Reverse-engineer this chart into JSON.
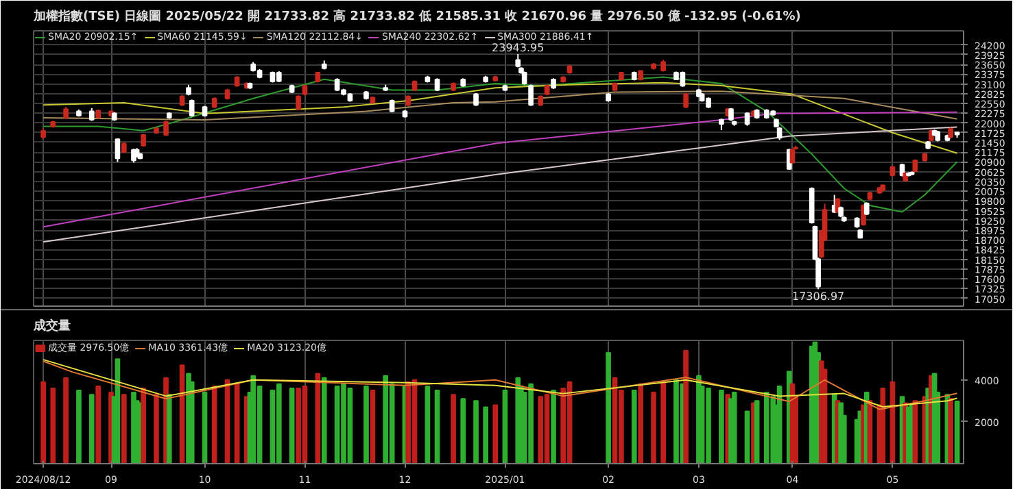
{
  "chart_data": [
    {
      "type": "candlestick",
      "title": "加權指數(TSE)  日線圖  2025/05/22  開 21733.82  高 21733.82  低 21585.31  收 21670.96  量 2976.50 億  -132.95 (-0.61%)",
      "x": [
        "2024-08-12",
        "2024-08-15",
        "2024-08-19",
        "2024-08-23",
        "2024-08-27",
        "2024-08-29",
        "2024-09-02",
        "2024-09-03",
        "2024-09-04",
        "2024-09-06",
        "2024-09-09",
        "2024-09-10",
        "2024-09-11",
        "2024-09-12",
        "2024-09-16",
        "2024-09-19",
        "2024-09-20",
        "2024-09-24",
        "2024-09-26",
        "2024-09-27",
        "2024-10-01",
        "2024-10-04",
        "2024-10-08",
        "2024-10-11",
        "2024-10-14",
        "2024-10-15",
        "2024-10-16",
        "2024-10-18",
        "2024-10-22",
        "2024-10-24",
        "2024-10-28",
        "2024-10-30",
        "2024-11-01",
        "2024-11-05",
        "2024-11-07",
        "2024-11-11",
        "2024-11-13",
        "2024-11-15",
        "2024-11-20",
        "2024-11-22",
        "2024-11-26",
        "2024-11-28",
        "2024-12-02",
        "2024-12-03",
        "2024-12-05",
        "2024-12-09",
        "2024-12-12",
        "2024-12-17",
        "2024-12-20",
        "2024-12-24",
        "2024-12-27",
        "2024-12-30",
        "2025-01-02",
        "2025-01-06",
        "2025-01-07",
        "2025-01-08",
        "2025-01-10",
        "2025-01-13",
        "2025-01-15",
        "2025-01-17",
        "2025-01-20",
        "2025-01-22",
        "2025-02-03",
        "2025-02-05",
        "2025-02-07",
        "2025-02-11",
        "2025-02-13",
        "2025-02-17",
        "2025-02-20",
        "2025-02-24",
        "2025-02-26",
        "2025-02-27",
        "2025-03-03",
        "2025-03-04",
        "2025-03-06",
        "2025-03-10",
        "2025-03-12",
        "2025-03-13",
        "2025-03-14",
        "2025-03-18",
        "2025-03-20",
        "2025-03-21",
        "2025-03-24",
        "2025-03-26",
        "2025-03-27",
        "2025-03-28",
        "2025-03-31",
        "2025-04-01",
        "2025-04-02",
        "2025-04-07",
        "2025-04-08",
        "2025-04-09",
        "2025-04-10",
        "2025-04-11",
        "2025-04-14",
        "2025-04-15",
        "2025-04-16",
        "2025-04-17",
        "2025-04-21",
        "2025-04-22",
        "2025-04-23",
        "2025-04-24",
        "2025-04-25",
        "2025-04-28",
        "2025-04-29",
        "2025-05-02",
        "2025-05-05",
        "2025-05-06",
        "2025-05-07",
        "2025-05-08",
        "2025-05-09",
        "2025-05-12",
        "2025-05-13",
        "2025-05-14",
        "2025-05-15",
        "2025-05-16",
        "2025-05-19",
        "2025-05-20",
        "2025-05-22"
      ],
      "ohlc": [
        [
          21600,
          21850,
          21550,
          21780
        ],
        [
          21900,
          22060,
          21870,
          22030
        ],
        [
          22150,
          22450,
          22120,
          22390
        ],
        [
          22330,
          22380,
          22180,
          22210
        ],
        [
          22330,
          22420,
          22060,
          22090
        ],
        [
          22150,
          22380,
          22120,
          22350
        ],
        [
          22210,
          22360,
          22180,
          22330
        ],
        [
          22270,
          22300,
          22060,
          22090
        ],
        [
          21540,
          21560,
          20900,
          21000
        ],
        [
          21180,
          21450,
          21150,
          21420
        ],
        [
          21240,
          21270,
          20880,
          20940
        ],
        [
          21240,
          21290,
          21030,
          21060
        ],
        [
          21120,
          21150,
          20980,
          21000
        ],
        [
          21360,
          21690,
          21340,
          21660
        ],
        [
          21720,
          21880,
          21700,
          21850
        ],
        [
          21660,
          22060,
          21640,
          22030
        ],
        [
          22270,
          22300,
          22120,
          22150
        ],
        [
          22510,
          22780,
          22480,
          22750
        ],
        [
          22990,
          23080,
          22780,
          22810
        ],
        [
          22630,
          22660,
          22180,
          22210
        ],
        [
          22450,
          22480,
          22180,
          22210
        ],
        [
          22450,
          22720,
          22420,
          22690
        ],
        [
          22690,
          22960,
          22660,
          22930
        ],
        [
          23050,
          23320,
          23020,
          23290
        ],
        [
          22990,
          23150,
          22960,
          23110
        ],
        [
          23110,
          23140,
          22960,
          22990
        ],
        [
          23660,
          23720,
          23450,
          23480
        ],
        [
          23480,
          23520,
          23260,
          23290
        ],
        [
          23420,
          23450,
          23140,
          23170
        ],
        [
          23420,
          23460,
          23150,
          23180
        ],
        [
          23050,
          23080,
          22840,
          22870
        ],
        [
          22390,
          22780,
          22360,
          22750
        ],
        [
          22810,
          23080,
          22780,
          23050
        ],
        [
          23170,
          23440,
          23140,
          23420
        ],
        [
          23660,
          23760,
          23510,
          23540
        ],
        [
          23230,
          23260,
          22900,
          22930
        ],
        [
          22930,
          22960,
          22780,
          22810
        ],
        [
          22810,
          22840,
          22600,
          22630
        ],
        [
          22870,
          22900,
          22660,
          22690
        ],
        [
          22570,
          22740,
          22540,
          22720
        ],
        [
          22990,
          23080,
          22900,
          22930
        ],
        [
          22630,
          22660,
          22300,
          22330
        ],
        [
          22330,
          22360,
          22150,
          22180
        ],
        [
          22510,
          22780,
          22480,
          22750
        ],
        [
          22930,
          23200,
          22900,
          23170
        ],
        [
          23290,
          23330,
          23140,
          23170
        ],
        [
          23230,
          23260,
          22900,
          22930
        ],
        [
          22930,
          23140,
          22900,
          23110
        ],
        [
          23230,
          23260,
          23020,
          23050
        ],
        [
          22810,
          22840,
          22480,
          22510
        ],
        [
          23290,
          23330,
          23140,
          23170
        ],
        [
          23200,
          23330,
          23170,
          23300
        ],
        [
          23050,
          23080,
          22900,
          22930
        ],
        [
          23780,
          23943.95,
          23570,
          23600
        ],
        [
          23540,
          23570,
          23390,
          23420
        ],
        [
          23420,
          23450,
          23080,
          23110
        ],
        [
          23050,
          23080,
          22480,
          22510
        ],
        [
          22510,
          22780,
          22480,
          22750
        ],
        [
          22810,
          23080,
          22780,
          23050
        ],
        [
          23230,
          23260,
          22960,
          22990
        ],
        [
          23170,
          23320,
          23140,
          23290
        ],
        [
          23420,
          23650,
          23390,
          23600
        ],
        [
          22810,
          22840,
          22600,
          22630
        ],
        [
          22930,
          23140,
          22900,
          23110
        ],
        [
          23230,
          23440,
          23200,
          23420
        ],
        [
          23420,
          23450,
          23200,
          23230
        ],
        [
          23230,
          23480,
          23200,
          23470
        ],
        [
          23540,
          23690,
          23510,
          23660
        ],
        [
          23480,
          23780,
          23450,
          23720
        ],
        [
          23420,
          23450,
          23220,
          23230
        ],
        [
          23420,
          23450,
          23020,
          23050
        ],
        [
          22450,
          22840,
          22420,
          22810
        ],
        [
          22930,
          22960,
          22730,
          22750
        ],
        [
          22810,
          22840,
          22600,
          22630
        ],
        [
          22690,
          22720,
          22420,
          22450
        ],
        [
          22090,
          22120,
          21800,
          21970
        ],
        [
          22210,
          22420,
          22180,
          22390
        ],
        [
          22390,
          22420,
          22060,
          22090
        ],
        [
          22030,
          22060,
          21920,
          21970
        ],
        [
          22270,
          22300,
          21920,
          21970
        ],
        [
          22210,
          22360,
          22180,
          22330
        ],
        [
          22360,
          22390,
          22120,
          22150
        ],
        [
          22360,
          22390,
          22120,
          22150
        ],
        [
          22330,
          22360,
          22210,
          22230
        ],
        [
          22090,
          22120,
          21880,
          21900
        ],
        [
          21850,
          21880,
          21520,
          21580
        ],
        [
          21240,
          21270,
          20680,
          20700
        ],
        [
          20880,
          21270,
          20850,
          21240
        ],
        [
          21280,
          21360,
          21250,
          21300
        ],
        [
          20150,
          20180,
          19160,
          19190
        ],
        [
          19070,
          19100,
          18130,
          18160
        ],
        [
          18160,
          18200,
          17306.97,
          17380
        ],
        [
          18220,
          18980,
          18190,
          18950
        ],
        [
          18700,
          19720,
          18670,
          19550
        ],
        [
          19670,
          19970,
          19460,
          19490
        ],
        [
          19490,
          19880,
          19460,
          19850
        ],
        [
          19610,
          19640,
          19340,
          19370
        ],
        [
          19330,
          19360,
          19210,
          19240
        ],
        [
          19310,
          19340,
          19040,
          19070
        ],
        [
          18970,
          19000,
          18740,
          18760
        ],
        [
          19130,
          19700,
          19100,
          19670
        ],
        [
          19730,
          19760,
          19400,
          19430
        ],
        [
          19850,
          20060,
          19820,
          20030
        ],
        [
          20030,
          20190,
          20000,
          20170
        ],
        [
          20100,
          20260,
          20070,
          20240
        ],
        [
          20520,
          20790,
          20490,
          20760
        ],
        [
          20820,
          20850,
          20490,
          20520
        ],
        [
          20370,
          20590,
          20340,
          20580
        ],
        [
          20580,
          20610,
          20490,
          20520
        ],
        [
          20600,
          20630,
          20530,
          20550
        ],
        [
          20640,
          20970,
          20610,
          20940
        ],
        [
          20940,
          21150,
          20910,
          21120
        ],
        [
          21460,
          21490,
          21260,
          21290
        ],
        [
          21510,
          21810,
          21480,
          21780
        ],
        [
          21780,
          21810,
          21630,
          21660
        ],
        [
          21750,
          21780,
          21480,
          21510
        ],
        [
          21640,
          21670,
          21480,
          21510
        ],
        [
          21600,
          21870,
          21570,
          21840
        ],
        [
          21733.82,
          21733.82,
          21585.31,
          21670.96
        ]
      ],
      "colors": [
        "#c8281e",
        "#c8281e",
        "#c8281e",
        "#ffffff",
        "#ffffff",
        "#c8281e",
        "#c8281e",
        "#ffffff",
        "#ffffff",
        "#c8281e",
        "#ffffff",
        "#ffffff",
        "#ffffff",
        "#c8281e",
        "#c8281e",
        "#c8281e",
        "#ffffff",
        "#c8281e",
        "#ffffff",
        "#ffffff",
        "#ffffff",
        "#c8281e",
        "#c8281e",
        "#c8281e",
        "#c8281e",
        "#ffffff",
        "#ffffff",
        "#ffffff",
        "#ffffff",
        "#ffffff",
        "#ffffff",
        "#c8281e",
        "#c8281e",
        "#c8281e",
        "#ffffff",
        "#ffffff",
        "#ffffff",
        "#ffffff",
        "#ffffff",
        "#c8281e",
        "#ffffff",
        "#ffffff",
        "#ffffff",
        "#c8281e",
        "#c8281e",
        "#ffffff",
        "#ffffff",
        "#c8281e",
        "#ffffff",
        "#ffffff",
        "#ffffff",
        "#c8281e",
        "#ffffff",
        "#ffffff",
        "#ffffff",
        "#ffffff",
        "#ffffff",
        "#c8281e",
        "#c8281e",
        "#ffffff",
        "#c8281e",
        "#c8281e",
        "#ffffff",
        "#c8281e",
        "#c8281e",
        "#ffffff",
        "#c8281e",
        "#c8281e",
        "#c8281e",
        "#ffffff",
        "#ffffff",
        "#c8281e",
        "#ffffff",
        "#ffffff",
        "#ffffff",
        "#ffffff",
        "#c8281e",
        "#ffffff",
        "#ffffff",
        "#ffffff",
        "#c8281e",
        "#ffffff",
        "#ffffff",
        "#ffffff",
        "#ffffff",
        "#ffffff",
        "#ffffff",
        "#c8281e",
        "#c8281e",
        "#ffffff",
        "#ffffff",
        "#ffffff",
        "#c8281e",
        "#c8281e",
        "#ffffff",
        "#c8281e",
        "#ffffff",
        "#ffffff",
        "#ffffff",
        "#ffffff",
        "#c8281e",
        "#ffffff",
        "#c8281e",
        "#c8281e",
        "#c8281e",
        "#c8281e",
        "#ffffff",
        "#c8281e",
        "#ffffff",
        "#ffffff",
        "#c8281e",
        "#c8281e",
        "#ffffff",
        "#c8281e",
        "#ffffff",
        "#ffffff",
        "#ffffff",
        "#c8281e",
        "#ffffff"
      ],
      "series": [
        {
          "type": "line",
          "name": "SMA20 20902.15↑",
          "color": "#2e9b2e",
          "x": [
            "2024-08-12",
            "2024-08-29",
            "2024-09-12",
            "2024-09-24",
            "2024-10-16",
            "2024-11-07",
            "2024-11-28",
            "2024-12-12",
            "2024-12-30",
            "2025-01-13",
            "2025-02-20",
            "2025-03-10",
            "2025-03-24",
            "2025-04-07",
            "2025-04-17",
            "2025-04-25",
            "2025-05-05",
            "2025-05-12",
            "2025-05-22"
          ],
          "values": [
            21905,
            21905,
            21784,
            22086,
            22690,
            23234,
            22930,
            22930,
            23113,
            23050,
            23294,
            23113,
            22328,
            21120,
            20154,
            19670,
            19489,
            19972,
            20902.15
          ]
        },
        {
          "type": "line",
          "name": "SMA60 21145.59↓",
          "color": "#c8c832",
          "x": [
            "2024-08-12",
            "2024-09-06",
            "2024-10-01",
            "2024-11-13",
            "2024-12-03",
            "2024-12-30",
            "2025-01-22",
            "2025-02-20",
            "2025-03-10",
            "2025-04-01",
            "2025-05-02",
            "2025-05-22"
          ],
          "values": [
            22509,
            22570,
            22268,
            22449,
            22630,
            22992,
            23077,
            23137,
            23053,
            22811,
            21724,
            21145.59
          ]
        },
        {
          "type": "line",
          "name": "SMA120 22112.84↓",
          "color": "#a88c5c",
          "x": [
            "2024-08-12",
            "2024-10-01",
            "2024-11-20",
            "2024-12-17",
            "2024-12-30",
            "2025-02-05",
            "2025-03-10",
            "2025-04-17",
            "2025-05-22"
          ],
          "values": [
            22147,
            22086,
            22328,
            22570,
            22594,
            22872,
            22896,
            22690,
            22112.84
          ]
        },
        {
          "type": "line",
          "name": "SMA240 22302.62↑",
          "color": "#c040c0",
          "x": [
            "2024-08-12",
            "2024-12-30",
            "2025-03-10",
            "2025-03-26",
            "2025-05-22"
          ],
          "values": [
            19066,
            21422,
            22086,
            22268,
            22302.62
          ]
        },
        {
          "type": "line",
          "name": "SMA300 21886.41↑",
          "color": "#d8c8c8",
          "x": [
            "2024-08-12",
            "2024-12-30",
            "2025-03-31",
            "2025-05-22"
          ],
          "values": [
            18644,
            20540,
            21627,
            21886.41
          ]
        }
      ],
      "xlim": [
        "2024-08-09",
        "2025-05-24"
      ],
      "xticks": [
        {
          "value": "2024-08-12",
          "label": null
        },
        {
          "value": "2024-09-02",
          "label": null
        },
        {
          "value": "2024-10-01",
          "label": null
        },
        {
          "value": "2024-11-01",
          "label": null
        },
        {
          "value": "2024-12-02",
          "label": null
        },
        {
          "value": "2025-01-02",
          "label": null
        },
        {
          "value": "2025-02-03",
          "label": null
        },
        {
          "value": "2025-03-03",
          "label": null
        },
        {
          "value": "2025-04-01",
          "label": null
        },
        {
          "value": "2025-05-02",
          "label": null
        }
      ],
      "ylim": [
        16830,
        24600
      ],
      "yticks": [
        17050,
        17325,
        17600,
        17875,
        18150,
        18425,
        18700,
        18975,
        19250,
        19525,
        19800,
        20075,
        20350,
        20625,
        20900,
        21175,
        21450,
        21725,
        22000,
        22275,
        22550,
        22825,
        23100,
        23375,
        23650,
        23925,
        24200
      ],
      "tick_labels": "y",
      "grid": true,
      "legend": "top left",
      "annotations": [
        {
          "text": "23943.95",
          "x": "2025-01-06",
          "y": 23943.95
        },
        {
          "text": "17306.97",
          "x": "2025-04-09",
          "y": 17306.97
        }
      ]
    },
    {
      "type": "bar",
      "title": "成交量",
      "x": [
        "2024-08-12",
        "2024-08-15",
        "2024-08-19",
        "2024-08-23",
        "2024-08-27",
        "2024-08-29",
        "2024-09-02",
        "2024-09-03",
        "2024-09-04",
        "2024-09-06",
        "2024-09-09",
        "2024-09-10",
        "2024-09-11",
        "2024-09-12",
        "2024-09-16",
        "2024-09-19",
        "2024-09-20",
        "2024-09-24",
        "2024-09-26",
        "2024-09-27",
        "2024-10-01",
        "2024-10-04",
        "2024-10-08",
        "2024-10-11",
        "2024-10-14",
        "2024-10-15",
        "2024-10-16",
        "2024-10-18",
        "2024-10-22",
        "2024-10-24",
        "2024-10-28",
        "2024-10-30",
        "2024-11-01",
        "2024-11-05",
        "2024-11-07",
        "2024-11-11",
        "2024-11-13",
        "2024-11-15",
        "2024-11-20",
        "2024-11-22",
        "2024-11-26",
        "2024-11-28",
        "2024-12-02",
        "2024-12-03",
        "2024-12-05",
        "2024-12-09",
        "2024-12-12",
        "2024-12-17",
        "2024-12-20",
        "2024-12-24",
        "2024-12-27",
        "2024-12-30",
        "2025-01-02",
        "2025-01-06",
        "2025-01-07",
        "2025-01-08",
        "2025-01-10",
        "2025-01-13",
        "2025-01-15",
        "2025-01-17",
        "2025-01-20",
        "2025-01-22",
        "2025-02-03",
        "2025-02-05",
        "2025-02-07",
        "2025-02-11",
        "2025-02-13",
        "2025-02-17",
        "2025-02-20",
        "2025-02-24",
        "2025-02-26",
        "2025-02-27",
        "2025-03-03",
        "2025-03-04",
        "2025-03-06",
        "2025-03-10",
        "2025-03-12",
        "2025-03-13",
        "2025-03-14",
        "2025-03-18",
        "2025-03-20",
        "2025-03-21",
        "2025-03-24",
        "2025-03-26",
        "2025-03-27",
        "2025-03-28",
        "2025-03-31",
        "2025-04-01",
        "2025-04-02",
        "2025-04-07",
        "2025-04-08",
        "2025-04-09",
        "2025-04-10",
        "2025-04-11",
        "2025-04-14",
        "2025-04-15",
        "2025-04-16",
        "2025-04-17",
        "2025-04-21",
        "2025-04-22",
        "2025-04-23",
        "2025-04-24",
        "2025-04-25",
        "2025-04-28",
        "2025-04-29",
        "2025-05-02",
        "2025-05-05",
        "2025-05-06",
        "2025-05-07",
        "2025-05-08",
        "2025-05-09",
        "2025-05-12",
        "2025-05-13",
        "2025-05-14",
        "2025-05-15",
        "2025-05-16",
        "2025-05-19",
        "2025-05-20",
        "2025-05-22"
      ],
      "series": [
        {
          "type": "bar",
          "name": "成交量 2976.50億",
          "color": "#c0201c",
          "values": [
            3900,
            3600,
            4100,
            3500,
            3300,
            3700,
            3400,
            3200,
            5000,
            3300,
            3400,
            3000,
            2900,
            3600,
            3300,
            4100,
            3300,
            4700,
            4300,
            3900,
            3400,
            3700,
            4000,
            3800,
            3200,
            3400,
            4200,
            3700,
            3500,
            3800,
            3600,
            3600,
            3700,
            4300,
            4100,
            3700,
            3800,
            3600,
            3700,
            3500,
            4200,
            3800,
            3700,
            3900,
            4000,
            3700,
            3500,
            3300,
            3100,
            3000,
            2700,
            2800,
            3500,
            4100,
            3700,
            3400,
            3800,
            3200,
            3300,
            3500,
            3600,
            3900,
            5300,
            4100,
            3500,
            3500,
            3800,
            3400,
            3900,
            4000,
            3800,
            5400,
            4200,
            3700,
            3600,
            3500,
            3300,
            3100,
            3400,
            2500,
            2900,
            3000,
            3400,
            3200,
            2800,
            3700,
            4400,
            3800,
            3200,
            5600,
            5800,
            5300,
            4900,
            4500,
            3300,
            3000,
            2900,
            2300,
            2100,
            2500,
            2800,
            3400,
            3000,
            2800,
            3600,
            3900,
            3200,
            2900,
            2700,
            2800,
            3000,
            3200,
            3600,
            4200,
            4300,
            3400,
            3300,
            3100,
            2976.5
          ],
          "colors": [
            "#c0201c",
            "#c0201c",
            "#c0201c",
            "#30b030",
            "#30b030",
            "#c0201c",
            "#c0201c",
            "#30b030",
            "#30b030",
            "#c0201c",
            "#30b030",
            "#30b030",
            "#30b030",
            "#c0201c",
            "#c0201c",
            "#c0201c",
            "#30b030",
            "#c0201c",
            "#30b030",
            "#30b030",
            "#30b030",
            "#c0201c",
            "#c0201c",
            "#c0201c",
            "#c0201c",
            "#30b030",
            "#30b030",
            "#30b030",
            "#30b030",
            "#30b030",
            "#30b030",
            "#c0201c",
            "#c0201c",
            "#c0201c",
            "#30b030",
            "#30b030",
            "#30b030",
            "#30b030",
            "#30b030",
            "#c0201c",
            "#30b030",
            "#30b030",
            "#30b030",
            "#c0201c",
            "#c0201c",
            "#30b030",
            "#30b030",
            "#c0201c",
            "#30b030",
            "#30b030",
            "#30b030",
            "#c0201c",
            "#30b030",
            "#30b030",
            "#30b030",
            "#30b030",
            "#30b030",
            "#c0201c",
            "#c0201c",
            "#30b030",
            "#c0201c",
            "#c0201c",
            "#30b030",
            "#c0201c",
            "#c0201c",
            "#30b030",
            "#c0201c",
            "#c0201c",
            "#c0201c",
            "#30b030",
            "#30b030",
            "#c0201c",
            "#30b030",
            "#30b030",
            "#30b030",
            "#30b030",
            "#c0201c",
            "#30b030",
            "#30b030",
            "#30b030",
            "#c0201c",
            "#30b030",
            "#30b030",
            "#30b030",
            "#30b030",
            "#30b030",
            "#30b030",
            "#c0201c",
            "#c0201c",
            "#30b030",
            "#30b030",
            "#30b030",
            "#c0201c",
            "#c0201c",
            "#30b030",
            "#c0201c",
            "#30b030",
            "#30b030",
            "#30b030",
            "#30b030",
            "#c0201c",
            "#30b030",
            "#c0201c",
            "#c0201c",
            "#c0201c",
            "#c0201c",
            "#30b030",
            "#c0201c",
            "#30b030",
            "#30b030",
            "#c0201c",
            "#c0201c",
            "#30b030",
            "#c0201c",
            "#30b030",
            "#30b030",
            "#30b030",
            "#c0201c",
            "#30b030"
          ]
        },
        {
          "type": "line",
          "name": "MA10 3361.43億",
          "color": "#e07830",
          "x": [
            "2024-08-12",
            "2024-08-21",
            "2024-09-19",
            "2024-10-16",
            "2024-12-02",
            "2024-12-30",
            "2025-01-20",
            "2025-02-27",
            "2025-03-31",
            "2025-04-11",
            "2025-04-28",
            "2025-05-12",
            "2025-05-22"
          ],
          "values": [
            4890,
            4380,
            3100,
            4000,
            3740,
            4000,
            3230,
            4120,
            2970,
            4000,
            2590,
            3000,
            3361.43
          ]
        },
        {
          "type": "line",
          "name": "MA20 3123.20億",
          "color": "#e8e040",
          "x": [
            "2024-08-12",
            "2024-09-19",
            "2024-10-16",
            "2024-12-02",
            "2024-12-30",
            "2025-01-20",
            "2025-02-27",
            "2025-03-28",
            "2025-04-17",
            "2025-04-29",
            "2025-05-19",
            "2025-05-22"
          ],
          "values": [
            4970,
            3226,
            4000,
            3870,
            3740,
            3350,
            4000,
            3226,
            3350,
            2714,
            3000,
            3123.2
          ]
        }
      ],
      "xlim": [
        "2024-08-09",
        "2025-05-24"
      ],
      "xticks": [
        {
          "value": "2024-08-12",
          "label": "2024/08/12"
        },
        {
          "value": "2024-09-02",
          "label": "09"
        },
        {
          "value": "2024-10-01",
          "label": "10"
        },
        {
          "value": "2024-11-01",
          "label": "11"
        },
        {
          "value": "2024-12-02",
          "label": "12"
        },
        {
          "value": "2025-01-02",
          "label": "2025/01"
        },
        {
          "value": "2025-02-03",
          "label": "02"
        },
        {
          "value": "2025-03-03",
          "label": "03"
        },
        {
          "value": "2025-04-01",
          "label": "04"
        },
        {
          "value": "2025-05-02",
          "label": "05"
        }
      ],
      "ylim": [
        0,
        5890
      ],
      "yticks": [
        2000,
        4000
      ],
      "grid": "x",
      "legend": "top left"
    }
  ]
}
